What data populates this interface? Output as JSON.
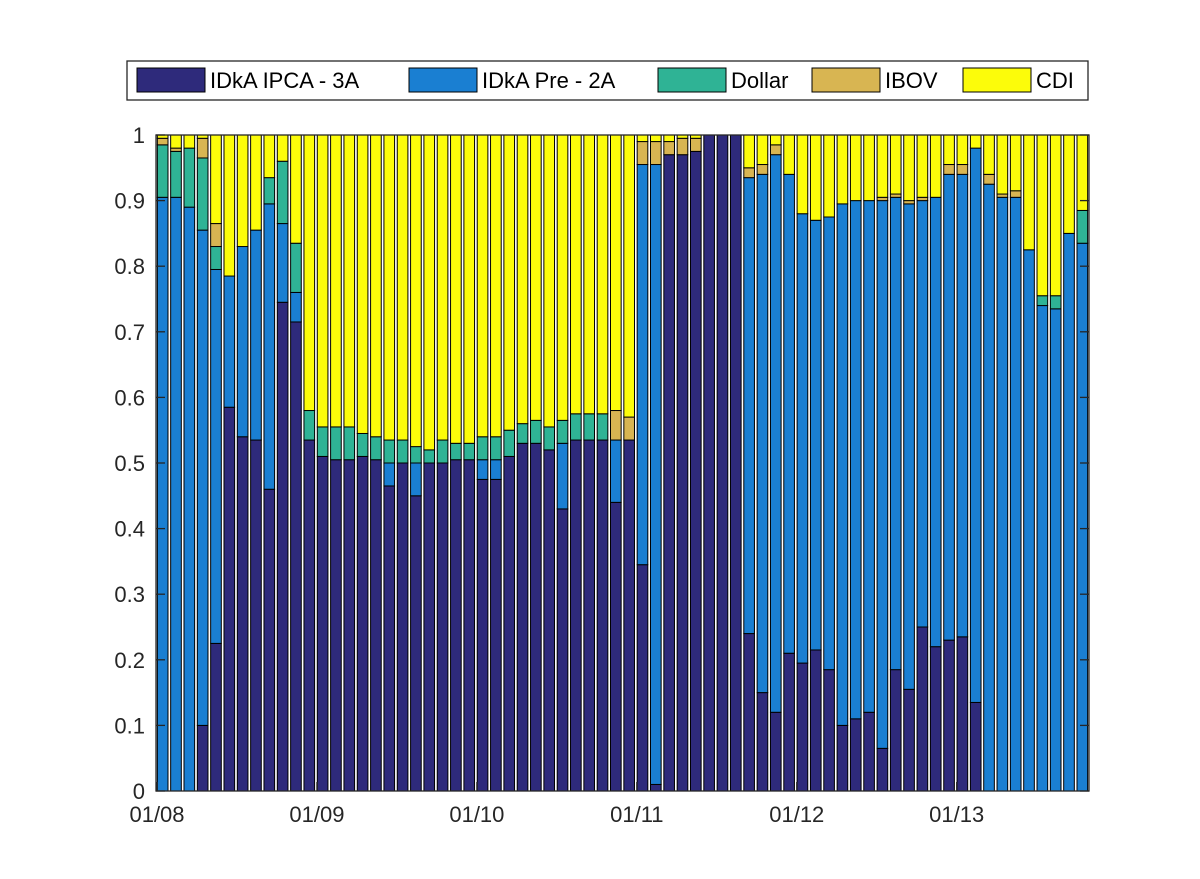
{
  "chart_data": {
    "type": "bar",
    "stacked": true,
    "title": "",
    "xlabel": "",
    "ylabel": "",
    "ylim": [
      0,
      1
    ],
    "yticks": [
      "0",
      "0.1",
      "0.2",
      "0.3",
      "0.4",
      "0.5",
      "0.6",
      "0.7",
      "0.8",
      "0.9",
      "1"
    ],
    "xticks": [
      {
        "bar": 0,
        "label": "01/08"
      },
      {
        "bar": 12,
        "label": "01/09"
      },
      {
        "bar": 24,
        "label": "01/10"
      },
      {
        "bar": 36,
        "label": "01/11"
      },
      {
        "bar": 48,
        "label": "01/12"
      },
      {
        "bar": 60,
        "label": "01/13"
      }
    ],
    "grid": false,
    "legend_position": "top",
    "series": [
      {
        "name": "IDkA IPCA - 3A",
        "color": "#2e2a7b",
        "values": [
          0,
          0,
          0,
          0.1,
          0.225,
          0.585,
          0.54,
          0.535,
          0.46,
          0.745,
          0.715,
          0.535,
          0.51,
          0.505,
          0.505,
          0.51,
          0.505,
          0.465,
          0.5,
          0.45,
          0.5,
          0.5,
          0.505,
          0.505,
          0.475,
          0.475,
          0.51,
          0.53,
          0.53,
          0.52,
          0.43,
          0.535,
          0.535,
          0.535,
          0.44,
          0.535,
          0.345,
          0.01,
          0.97,
          0.97,
          0.975,
          1.0,
          1.0,
          1.0,
          0.24,
          0.15,
          0.12,
          0.21,
          0.195,
          0.215,
          0.185,
          0.1,
          0.11,
          0.12,
          0.065,
          0.185,
          0.155,
          0.25,
          0.22,
          0.23,
          0.235,
          0.135,
          0,
          0,
          0,
          0,
          0,
          0,
          0,
          0
        ]
      },
      {
        "name": "IDkA Pre - 2A",
        "color": "#1a7fd2",
        "values": [
          0.905,
          0.905,
          0.89,
          0.755,
          0.57,
          0.2,
          0.29,
          0.32,
          0.435,
          0.12,
          0.045,
          0,
          0,
          0,
          0,
          0,
          0,
          0.035,
          0,
          0.05,
          0,
          0,
          0,
          0,
          0.03,
          0.03,
          0,
          0,
          0,
          0,
          0.1,
          0,
          0,
          0,
          0.095,
          0,
          0.61,
          0.945,
          0,
          0,
          0,
          0,
          0,
          0,
          0.695,
          0.79,
          0.85,
          0.73,
          0.685,
          0.655,
          0.69,
          0.795,
          0.79,
          0.78,
          0.835,
          0.72,
          0.74,
          0.65,
          0.685,
          0.71,
          0.705,
          0.845,
          0.925,
          0.905,
          0.905,
          0.825,
          0.74,
          0.735,
          0.85,
          0.835
        ]
      },
      {
        "name": "Dollar",
        "color": "#2fb395",
        "values": [
          0.08,
          0.07,
          0.09,
          0.11,
          0.035,
          0,
          0,
          0,
          0.04,
          0.095,
          0.075,
          0.045,
          0.045,
          0.05,
          0.05,
          0.035,
          0.035,
          0.035,
          0.035,
          0.025,
          0.02,
          0.035,
          0.025,
          0.025,
          0.035,
          0.035,
          0.04,
          0.03,
          0.035,
          0.035,
          0.035,
          0.04,
          0.04,
          0.04,
          0,
          0,
          0,
          0,
          0,
          0,
          0,
          0,
          0,
          0,
          0,
          0,
          0,
          0,
          0,
          0,
          0,
          0,
          0,
          0,
          0,
          0,
          0,
          0,
          0,
          0,
          0,
          0,
          0,
          0,
          0,
          0,
          0.015,
          0.02,
          0,
          0.05
        ]
      },
      {
        "name": "IBOV",
        "color": "#d8b552",
        "values": [
          0.01,
          0.005,
          0,
          0.03,
          0.035,
          0,
          0,
          0,
          0,
          0,
          0,
          0,
          0,
          0,
          0,
          0,
          0,
          0,
          0,
          0,
          0,
          0,
          0,
          0,
          0,
          0,
          0,
          0,
          0,
          0,
          0,
          0,
          0,
          0,
          0.045,
          0.035,
          0.035,
          0.035,
          0.02,
          0.025,
          0.02,
          0,
          0,
          0,
          0.015,
          0.015,
          0.015,
          0,
          0,
          0,
          0,
          0,
          0,
          0,
          0.005,
          0.005,
          0.005,
          0.005,
          0,
          0.015,
          0.015,
          0,
          0.015,
          0.005,
          0.01,
          0,
          0,
          0,
          0,
          0
        ]
      },
      {
        "name": "CDI",
        "color": "#fcfc0a",
        "values": [
          0.005,
          0.02,
          0.02,
          0.005,
          0.135,
          0.215,
          0.17,
          0.145,
          0.065,
          0.04,
          0.165,
          0.42,
          0.445,
          0.445,
          0.445,
          0.455,
          0.46,
          0.465,
          0.465,
          0.475,
          0.48,
          0.465,
          0.47,
          0.47,
          0.46,
          0.46,
          0.45,
          0.44,
          0.435,
          0.445,
          0.435,
          0.425,
          0.425,
          0.425,
          0.42,
          0.43,
          0.01,
          0.01,
          0.01,
          0.005,
          0.005,
          0,
          0,
          0,
          0.05,
          0.045,
          0.015,
          0.06,
          0.12,
          0.13,
          0.125,
          0.105,
          0.1,
          0.1,
          0.095,
          0.09,
          0.1,
          0.095,
          0.095,
          0.045,
          0.045,
          0.02,
          0.06,
          0.09,
          0.085,
          0.175,
          0.245,
          0.245,
          0.15,
          0.115
        ]
      }
    ]
  }
}
